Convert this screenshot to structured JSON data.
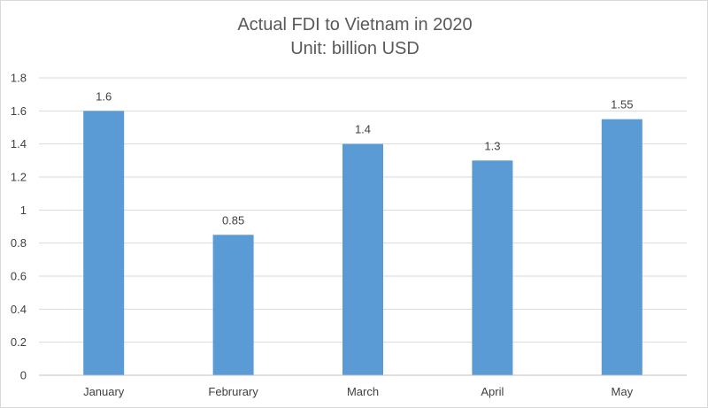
{
  "chart_data": {
    "type": "bar",
    "title": "Actual FDI to Vietnam in 2020",
    "subtitle": "Unit: billion USD",
    "categories": [
      "January",
      "Februrary",
      "March",
      "April",
      "May"
    ],
    "values": [
      1.6,
      0.85,
      1.4,
      1.3,
      1.55
    ],
    "data_labels": [
      "1.6",
      "0.85",
      "1.4",
      "1.3",
      "1.55"
    ],
    "y_ticks": [
      "0",
      "0.2",
      "0.4",
      "0.6",
      "0.8",
      "1",
      "1.2",
      "1.4",
      "1.6",
      "1.8"
    ],
    "ylim": [
      0,
      1.8
    ],
    "xlabel": "",
    "ylabel": "",
    "grid": true,
    "legend": "none",
    "colors": {
      "bar": "#5b9bd5",
      "grid": "#d9d9d9",
      "axis": "#bfbfbf",
      "text": "#404040",
      "title": "#595959"
    }
  }
}
